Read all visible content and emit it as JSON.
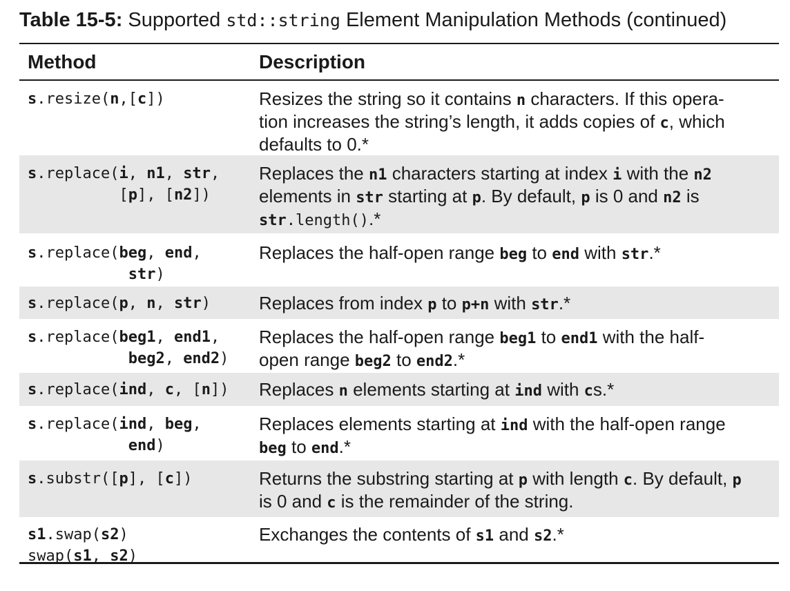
{
  "caption": {
    "label": "Table 15-5:",
    "pre": " Supported ",
    "code": "std::string",
    "post": " Element Manipulation Methods (continued)"
  },
  "headers": {
    "method": "Method",
    "description": "Description"
  },
  "rows": [
    {
      "method": [
        [
          {
            "t": "s",
            "b": true
          },
          {
            "t": ".resize(",
            "b": false
          },
          {
            "t": "n",
            "b": true
          },
          {
            "t": ",[",
            "b": false
          },
          {
            "t": "c",
            "b": true
          },
          {
            "t": "])",
            "b": false
          }
        ]
      ],
      "description": [
        {
          "t": "Resizes the string so it contains "
        },
        {
          "t": "n",
          "code": true,
          "b": true
        },
        {
          "t": " characters. If this opera-"
        },
        {
          "br": true
        },
        {
          "t": "tion increases the string’s length, it adds copies of "
        },
        {
          "t": "c",
          "code": true,
          "b": true
        },
        {
          "t": ", which"
        },
        {
          "br": true
        },
        {
          "t": "defaults to 0.*"
        }
      ]
    },
    {
      "method": [
        [
          {
            "t": "s",
            "b": true
          },
          {
            "t": ".replace(",
            "b": false
          },
          {
            "t": "i",
            "b": true
          },
          {
            "t": ", ",
            "b": false
          },
          {
            "t": "n1",
            "b": true
          },
          {
            "t": ", ",
            "b": false
          },
          {
            "t": "str",
            "b": true
          },
          {
            "t": ",",
            "b": false
          }
        ],
        [
          {
            "t": "          [",
            "b": false
          },
          {
            "t": "p",
            "b": true
          },
          {
            "t": "], [",
            "b": false
          },
          {
            "t": "n2",
            "b": true
          },
          {
            "t": "])",
            "b": false
          }
        ]
      ],
      "description": [
        {
          "t": "Replaces the "
        },
        {
          "t": "n1",
          "code": true,
          "b": true
        },
        {
          "t": " characters starting at index "
        },
        {
          "t": "i",
          "code": true,
          "b": true
        },
        {
          "t": " with the "
        },
        {
          "t": "n2",
          "code": true,
          "b": true
        },
        {
          "br": true
        },
        {
          "t": "elements in "
        },
        {
          "t": "str",
          "code": true,
          "b": true
        },
        {
          "t": " starting at "
        },
        {
          "t": "p",
          "code": true,
          "b": true
        },
        {
          "t": ". By default, "
        },
        {
          "t": "p",
          "code": true,
          "b": true
        },
        {
          "t": " is 0 and "
        },
        {
          "t": "n2",
          "code": true,
          "b": true
        },
        {
          "t": " is"
        },
        {
          "br": true
        },
        {
          "t": "str",
          "code": true,
          "b": true
        },
        {
          "t": ".length()",
          "code": true
        },
        {
          "t": ".*"
        }
      ]
    },
    {
      "method": [
        [
          {
            "t": "s",
            "b": true
          },
          {
            "t": ".replace(",
            "b": false
          },
          {
            "t": "beg",
            "b": true
          },
          {
            "t": ", ",
            "b": false
          },
          {
            "t": "end",
            "b": true
          },
          {
            "t": ",",
            "b": false
          }
        ],
        [
          {
            "t": "           ",
            "b": false
          },
          {
            "t": "str",
            "b": true
          },
          {
            "t": ")",
            "b": false
          }
        ]
      ],
      "description": [
        {
          "t": "Replaces the half-open range "
        },
        {
          "t": "beg",
          "code": true,
          "b": true
        },
        {
          "t": " to "
        },
        {
          "t": "end",
          "code": true,
          "b": true
        },
        {
          "t": " with "
        },
        {
          "t": "str",
          "code": true,
          "b": true
        },
        {
          "t": ".*"
        }
      ]
    },
    {
      "method": [
        [
          {
            "t": "s",
            "b": true
          },
          {
            "t": ".replace(",
            "b": false
          },
          {
            "t": "p",
            "b": true
          },
          {
            "t": ", ",
            "b": false
          },
          {
            "t": "n",
            "b": true
          },
          {
            "t": ", ",
            "b": false
          },
          {
            "t": "str",
            "b": true
          },
          {
            "t": ")",
            "b": false
          }
        ]
      ],
      "description": [
        {
          "t": "Replaces from index "
        },
        {
          "t": "p",
          "code": true,
          "b": true
        },
        {
          "t": " to "
        },
        {
          "t": "p+n",
          "code": true,
          "b": true
        },
        {
          "t": " with "
        },
        {
          "t": "str",
          "code": true,
          "b": true
        },
        {
          "t": ".*"
        }
      ]
    },
    {
      "method": [
        [
          {
            "t": "s",
            "b": true
          },
          {
            "t": ".replace(",
            "b": false
          },
          {
            "t": "beg1",
            "b": true
          },
          {
            "t": ", ",
            "b": false
          },
          {
            "t": "end1",
            "b": true
          },
          {
            "t": ",",
            "b": false
          }
        ],
        [
          {
            "t": "           ",
            "b": false
          },
          {
            "t": "beg2",
            "b": true
          },
          {
            "t": ", ",
            "b": false
          },
          {
            "t": "end2",
            "b": true
          },
          {
            "t": ")",
            "b": false
          }
        ]
      ],
      "description": [
        {
          "t": "Replaces the half-open range "
        },
        {
          "t": "beg1",
          "code": true,
          "b": true
        },
        {
          "t": " to "
        },
        {
          "t": "end1",
          "code": true,
          "b": true
        },
        {
          "t": " with the half-"
        },
        {
          "br": true
        },
        {
          "t": "open range "
        },
        {
          "t": "beg2",
          "code": true,
          "b": true
        },
        {
          "t": " to "
        },
        {
          "t": "end2",
          "code": true,
          "b": true
        },
        {
          "t": ".*"
        }
      ]
    },
    {
      "method": [
        [
          {
            "t": "s",
            "b": true
          },
          {
            "t": ".replace(",
            "b": false
          },
          {
            "t": "ind",
            "b": true
          },
          {
            "t": ", ",
            "b": false
          },
          {
            "t": "c",
            "b": true
          },
          {
            "t": ", [",
            "b": false
          },
          {
            "t": "n",
            "b": true
          },
          {
            "t": "])",
            "b": false
          }
        ]
      ],
      "description": [
        {
          "t": "Replaces "
        },
        {
          "t": "n",
          "code": true,
          "b": true
        },
        {
          "t": " elements starting at "
        },
        {
          "t": "ind",
          "code": true,
          "b": true
        },
        {
          "t": " with "
        },
        {
          "t": "c",
          "code": true,
          "b": true
        },
        {
          "t": "s.*"
        }
      ]
    },
    {
      "method": [
        [
          {
            "t": "s",
            "b": true
          },
          {
            "t": ".replace(",
            "b": false
          },
          {
            "t": "ind",
            "b": true
          },
          {
            "t": ", ",
            "b": false
          },
          {
            "t": "beg",
            "b": true
          },
          {
            "t": ",",
            "b": false
          }
        ],
        [
          {
            "t": "           ",
            "b": false
          },
          {
            "t": "end",
            "b": true
          },
          {
            "t": ")",
            "b": false
          }
        ]
      ],
      "description": [
        {
          "t": "Replaces elements starting at "
        },
        {
          "t": "ind",
          "code": true,
          "b": true
        },
        {
          "t": " with the half-open range"
        },
        {
          "br": true
        },
        {
          "t": "beg",
          "code": true,
          "b": true
        },
        {
          "t": " to "
        },
        {
          "t": "end",
          "code": true,
          "b": true
        },
        {
          "t": ".*"
        }
      ]
    },
    {
      "method": [
        [
          {
            "t": "s",
            "b": true
          },
          {
            "t": ".substr([",
            "b": false
          },
          {
            "t": "p",
            "b": true
          },
          {
            "t": "], [",
            "b": false
          },
          {
            "t": "c",
            "b": true
          },
          {
            "t": "])",
            "b": false
          }
        ]
      ],
      "description": [
        {
          "t": "Returns the substring starting at "
        },
        {
          "t": "p",
          "code": true,
          "b": true
        },
        {
          "t": " with length "
        },
        {
          "t": "c",
          "code": true,
          "b": true
        },
        {
          "t": ". By default, "
        },
        {
          "t": "p",
          "code": true,
          "b": true
        },
        {
          "br": true
        },
        {
          "t": "is 0 and "
        },
        {
          "t": "c",
          "code": true,
          "b": true
        },
        {
          "t": " is the remainder of the string."
        }
      ]
    },
    {
      "method": [
        [
          {
            "t": "s1",
            "b": true
          },
          {
            "t": ".swap(",
            "b": false
          },
          {
            "t": "s2",
            "b": true
          },
          {
            "t": ")",
            "b": false
          }
        ],
        [
          {
            "t": "swap(",
            "b": false
          },
          {
            "t": "s1",
            "b": true
          },
          {
            "t": ", ",
            "b": false
          },
          {
            "t": "s2",
            "b": true
          },
          {
            "t": ")",
            "b": false
          }
        ]
      ],
      "description": [
        {
          "t": "Exchanges the contents of "
        },
        {
          "t": "s1",
          "code": true,
          "b": true
        },
        {
          "t": " and "
        },
        {
          "t": "s2",
          "code": true,
          "b": true
        },
        {
          "t": ".*"
        }
      ]
    }
  ]
}
